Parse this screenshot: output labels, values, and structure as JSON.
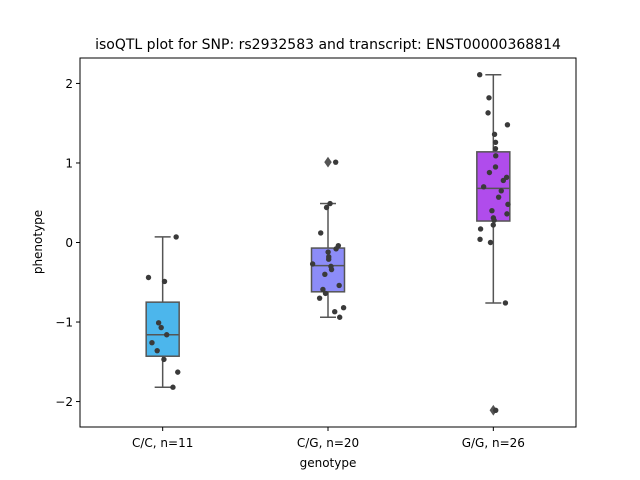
{
  "chart_data": {
    "type": "box",
    "title": "isoQTL plot for SNP: rs2932583 and transcript: ENST00000368814",
    "xlabel": "genotype",
    "ylabel": "phenotype",
    "ylim": [
      -2.32,
      2.32
    ],
    "yticks": [
      -2,
      -1,
      0,
      1,
      2
    ],
    "ytick_labels": [
      "−2",
      "−1",
      "0",
      "1",
      "2"
    ],
    "grid": false,
    "categories": [
      "C/C, n=11",
      "C/G, n=20",
      "G/G, n=26"
    ],
    "groups": [
      {
        "label": "C/C, n=11",
        "color": "#4cb6ec",
        "q1": -1.43,
        "median": -1.16,
        "q3": -0.75,
        "whisker_low": -1.82,
        "whisker_high": 0.07,
        "outliers": [],
        "points": [
          0.07,
          -0.44,
          -0.49,
          -1.01,
          -1.07,
          -1.16,
          -1.26,
          -1.36,
          -1.47,
          -1.63,
          -1.82
        ]
      },
      {
        "label": "C/G, n=20",
        "color": "#8c8cf8",
        "q1": -0.62,
        "median": -0.29,
        "q3": -0.07,
        "whisker_low": -0.94,
        "whisker_high": 0.49,
        "outliers": [
          1.01
        ],
        "points": [
          1.01,
          0.49,
          0.44,
          0.12,
          -0.04,
          -0.08,
          -0.12,
          -0.18,
          -0.21,
          -0.27,
          -0.3,
          -0.34,
          -0.4,
          -0.54,
          -0.59,
          -0.64,
          -0.7,
          -0.82,
          -0.87,
          -0.94
        ]
      },
      {
        "label": "G/G, n=26",
        "color": "#b04cec",
        "q1": 0.27,
        "median": 0.68,
        "q3": 1.14,
        "whisker_low": -0.76,
        "whisker_high": 2.11,
        "outliers": [
          -2.11
        ],
        "points": [
          2.11,
          1.82,
          1.63,
          1.48,
          1.36,
          1.26,
          1.18,
          1.09,
          0.95,
          0.88,
          0.82,
          0.78,
          0.7,
          0.65,
          0.57,
          0.48,
          0.4,
          0.36,
          0.31,
          0.28,
          0.22,
          0.17,
          0.04,
          0.0,
          -0.76,
          -2.11
        ]
      }
    ]
  }
}
